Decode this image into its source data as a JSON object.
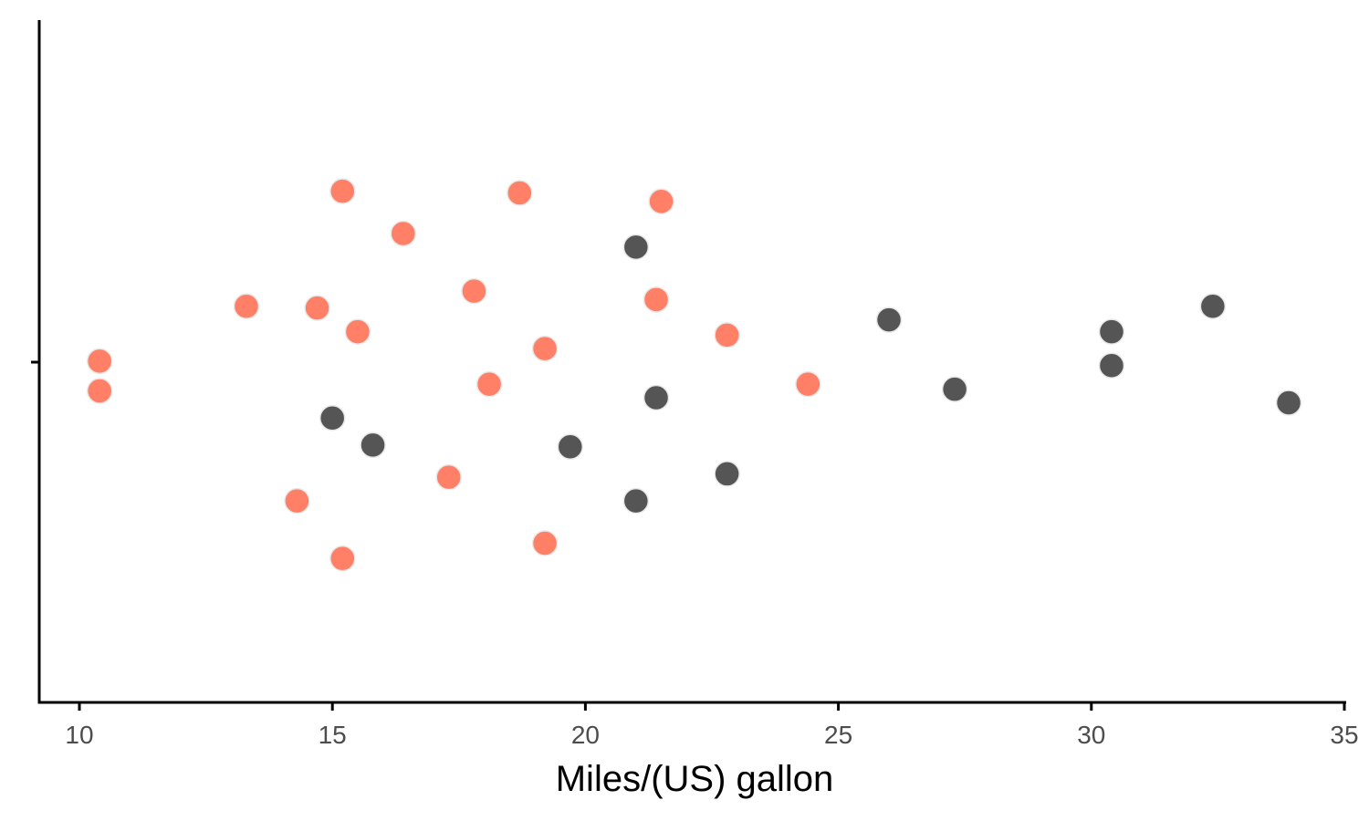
{
  "chart_data": {
    "type": "scatter",
    "xlabel": "Miles/(US) gallon",
    "ylabel": "",
    "xlim": [
      9.2,
      35
    ],
    "ylim": [
      -1,
      1
    ],
    "x_ticks": [
      "10",
      "15",
      "20",
      "25",
      "30",
      "35"
    ],
    "grid": false,
    "legend": "none",
    "colors": {
      "group_a": "#ff8066",
      "group_b": "#555555"
    },
    "series": [
      {
        "color": "#ff8066",
        "points": [
          {
            "x": 10.4,
            "y": 0.003
          },
          {
            "x": 10.4,
            "y": -0.085
          },
          {
            "x": 13.3,
            "y": 0.165
          },
          {
            "x": 14.3,
            "y": -0.41
          },
          {
            "x": 14.7,
            "y": 0.16
          },
          {
            "x": 15.2,
            "y": 0.505
          },
          {
            "x": 15.2,
            "y": -0.58
          },
          {
            "x": 15.5,
            "y": 0.09
          },
          {
            "x": 16.4,
            "y": 0.38
          },
          {
            "x": 17.3,
            "y": -0.34
          },
          {
            "x": 17.8,
            "y": 0.21
          },
          {
            "x": 18.1,
            "y": -0.065
          },
          {
            "x": 18.7,
            "y": 0.5
          },
          {
            "x": 19.2,
            "y": 0.04
          },
          {
            "x": 19.2,
            "y": -0.535
          },
          {
            "x": 21.4,
            "y": 0.185
          },
          {
            "x": 21.5,
            "y": 0.475
          },
          {
            "x": 22.8,
            "y": 0.08
          },
          {
            "x": 24.4,
            "y": -0.065
          }
        ]
      },
      {
        "color": "#555555",
        "points": [
          {
            "x": 15.0,
            "y": -0.165
          },
          {
            "x": 15.8,
            "y": -0.245
          },
          {
            "x": 19.7,
            "y": -0.25
          },
          {
            "x": 21.0,
            "y": 0.34
          },
          {
            "x": 21.0,
            "y": -0.41
          },
          {
            "x": 21.4,
            "y": -0.105
          },
          {
            "x": 22.8,
            "y": -0.33
          },
          {
            "x": 26.0,
            "y": 0.125
          },
          {
            "x": 27.3,
            "y": -0.08
          },
          {
            "x": 30.4,
            "y": 0.09
          },
          {
            "x": 30.4,
            "y": -0.01
          },
          {
            "x": 32.4,
            "y": 0.165
          },
          {
            "x": 33.9,
            "y": -0.12
          }
        ]
      }
    ]
  }
}
